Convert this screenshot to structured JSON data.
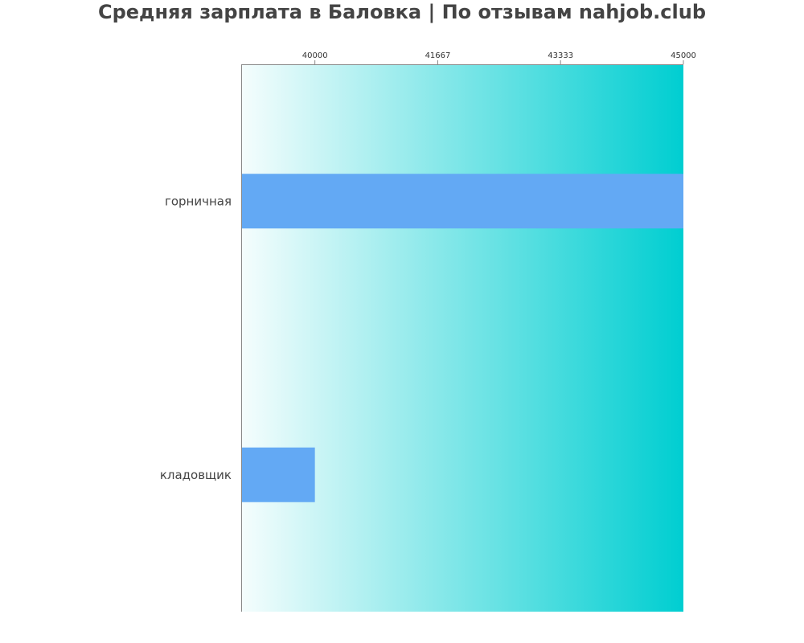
{
  "chart_data": {
    "type": "bar",
    "orientation": "horizontal",
    "title": "Средняя зарплата в Баловка | По отзывам nahjob.club",
    "categories": [
      "горничная",
      "кладовщик"
    ],
    "values": [
      45000,
      40000
    ],
    "xlim": [
      39000,
      45000
    ],
    "x_ticks": [
      40000,
      41667,
      43333,
      45000
    ],
    "x_tick_labels": [
      "40000",
      "41667",
      "43333",
      "45000"
    ],
    "x_axis_position": "top",
    "grid": false,
    "colors": {
      "bar": "#63a9f4",
      "background_gradient_start": "#f5fdfd",
      "background_gradient_end": "#00ced1",
      "text": "#444444"
    }
  }
}
